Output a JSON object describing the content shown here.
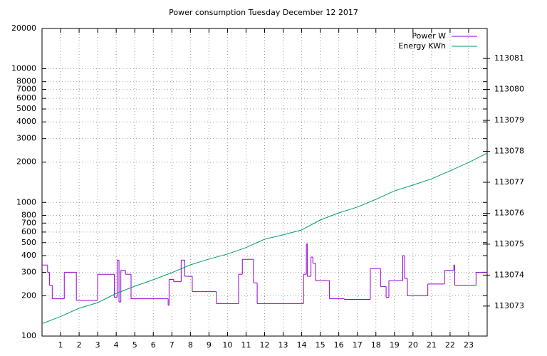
{
  "chart_data": {
    "type": "line",
    "title": "Power consumption Tuesday December 12 2017",
    "xlim": [
      0,
      24
    ],
    "xticks": [
      1,
      2,
      3,
      4,
      5,
      6,
      7,
      8,
      9,
      10,
      11,
      12,
      13,
      14,
      15,
      16,
      17,
      18,
      19,
      20,
      21,
      22,
      23
    ],
    "ylim": [
      100,
      20000
    ],
    "yscale": "log",
    "yticks": [
      100,
      200,
      300,
      400,
      500,
      600,
      700,
      800,
      1000,
      2000,
      3000,
      4000,
      5000,
      6000,
      7000,
      8000,
      10000,
      20000
    ],
    "y2lim": [
      113072.03,
      113081.97
    ],
    "y2ticks": [
      113073,
      113074,
      113075,
      113076,
      113077,
      113078,
      113079,
      113080,
      113081
    ],
    "grid": true,
    "legend": "top-right",
    "series": [
      {
        "name": "Power W",
        "color": "#9400d3",
        "style": "steps",
        "x": [
          0,
          0.3,
          0.4,
          0.55,
          1.2,
          1.85,
          3.0,
          3.9,
          4.05,
          4.15,
          4.25,
          4.5,
          4.8,
          6.8,
          6.85,
          7.1,
          7.5,
          7.7,
          8.1,
          9.4,
          10.6,
          10.8,
          11.4,
          11.6,
          14.1,
          14.25,
          14.3,
          14.5,
          14.6,
          14.75,
          15.5,
          16.3,
          17.7,
          18.25,
          18.55,
          18.7,
          19.45,
          19.55,
          19.7,
          20.8,
          21.7,
          22.2,
          22.25,
          23.4
        ],
        "values": [
          340,
          300,
          240,
          190,
          300,
          185,
          290,
          195,
          370,
          180,
          310,
          290,
          190,
          170,
          265,
          255,
          370,
          280,
          215,
          175,
          290,
          375,
          250,
          175,
          290,
          490,
          280,
          390,
          350,
          260,
          190,
          188,
          320,
          235,
          195,
          260,
          400,
          270,
          200,
          245,
          310,
          340,
          240,
          300
        ]
      },
      {
        "name": "Energy KWh",
        "color": "#009e73",
        "axis": "y2",
        "x": [
          0,
          1,
          2,
          3,
          4,
          5,
          6,
          7,
          8,
          9,
          10,
          11,
          12,
          13,
          14,
          15,
          16,
          17,
          18,
          19,
          20,
          21,
          22,
          23,
          24
        ],
        "values": [
          113072.43,
          113072.66,
          113072.93,
          113073.11,
          113073.41,
          113073.64,
          113073.85,
          113074.08,
          113074.33,
          113074.52,
          113074.68,
          113074.89,
          113075.16,
          113075.3,
          113075.46,
          113075.78,
          113076.01,
          113076.2,
          113076.45,
          113076.72,
          113076.91,
          113077.11,
          113077.37,
          113077.64,
          113077.94
        ]
      }
    ]
  }
}
